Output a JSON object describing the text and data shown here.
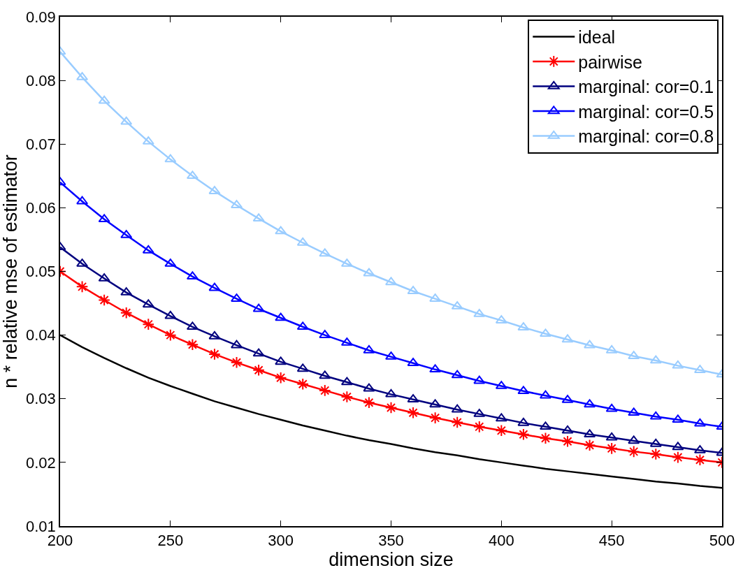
{
  "chart_data": {
    "type": "line",
    "xlabel": "dimension size",
    "ylabel": "n * relative mse of estimator",
    "x": [
      200,
      210,
      220,
      230,
      240,
      250,
      260,
      270,
      280,
      290,
      300,
      310,
      320,
      330,
      340,
      350,
      360,
      370,
      380,
      390,
      400,
      410,
      420,
      430,
      440,
      450,
      460,
      470,
      480,
      490,
      500
    ],
    "series": [
      {
        "name": "ideal",
        "color": "#000000",
        "marker": "none",
        "values": [
          0.04,
          0.0381,
          0.0364,
          0.0348,
          0.0333,
          0.032,
          0.0308,
          0.0296,
          0.0286,
          0.0276,
          0.0267,
          0.0258,
          0.025,
          0.0242,
          0.0235,
          0.0229,
          0.0222,
          0.0216,
          0.0211,
          0.0205,
          0.02,
          0.0195,
          0.019,
          0.0186,
          0.0182,
          0.0178,
          0.0174,
          0.017,
          0.0167,
          0.0163,
          0.016
        ]
      },
      {
        "name": "pairwise",
        "color": "#ff0000",
        "marker": "cross",
        "values": [
          0.05,
          0.0476,
          0.0455,
          0.0435,
          0.0417,
          0.04,
          0.0385,
          0.037,
          0.0357,
          0.0345,
          0.0333,
          0.0323,
          0.0313,
          0.0303,
          0.0294,
          0.0286,
          0.0278,
          0.027,
          0.0263,
          0.0256,
          0.025,
          0.0244,
          0.0238,
          0.0233,
          0.0227,
          0.0222,
          0.0217,
          0.0213,
          0.0208,
          0.0204,
          0.02
        ]
      },
      {
        "name": "marginal: cor=0.1",
        "color": "#00007f",
        "marker": "triangle",
        "values": [
          0.0538,
          0.0512,
          0.0489,
          0.0467,
          0.0448,
          0.043,
          0.0413,
          0.0398,
          0.0384,
          0.0371,
          0.0358,
          0.0347,
          0.0336,
          0.0326,
          0.0316,
          0.0307,
          0.0299,
          0.0291,
          0.0283,
          0.0276,
          0.0269,
          0.0262,
          0.0256,
          0.025,
          0.0244,
          0.0239,
          0.0234,
          0.0229,
          0.0224,
          0.0219,
          0.0215
        ]
      },
      {
        "name": "marginal: cor=0.5",
        "color": "#0000ff",
        "marker": "triangle",
        "values": [
          0.064,
          0.061,
          0.0582,
          0.0557,
          0.0533,
          0.0512,
          0.0492,
          0.0474,
          0.0457,
          0.0441,
          0.0427,
          0.0413,
          0.04,
          0.0388,
          0.0376,
          0.0366,
          0.0356,
          0.0346,
          0.0337,
          0.0328,
          0.032,
          0.0312,
          0.0305,
          0.0298,
          0.0291,
          0.0284,
          0.0278,
          0.0272,
          0.0267,
          0.0261,
          0.0256
        ]
      },
      {
        "name": "marginal: cor=0.8",
        "color": "#99ccff",
        "marker": "triangle",
        "values": [
          0.0845,
          0.0805,
          0.0768,
          0.0735,
          0.0704,
          0.0676,
          0.065,
          0.0626,
          0.0604,
          0.0583,
          0.0563,
          0.0545,
          0.0528,
          0.0512,
          0.0497,
          0.0483,
          0.0469,
          0.0457,
          0.0445,
          0.0433,
          0.0423,
          0.0412,
          0.0402,
          0.0393,
          0.0384,
          0.0376,
          0.0367,
          0.036,
          0.0352,
          0.0345,
          0.0338
        ]
      }
    ],
    "xlim": [
      200,
      500
    ],
    "xticks": [
      200,
      250,
      300,
      350,
      400,
      450,
      500
    ],
    "ylim": [
      0.01,
      0.09
    ],
    "yticks": [
      0.01,
      0.02,
      0.03,
      0.04,
      0.05,
      0.06,
      0.07,
      0.08,
      0.09
    ],
    "legend": "top right",
    "line_style": "solid"
  }
}
